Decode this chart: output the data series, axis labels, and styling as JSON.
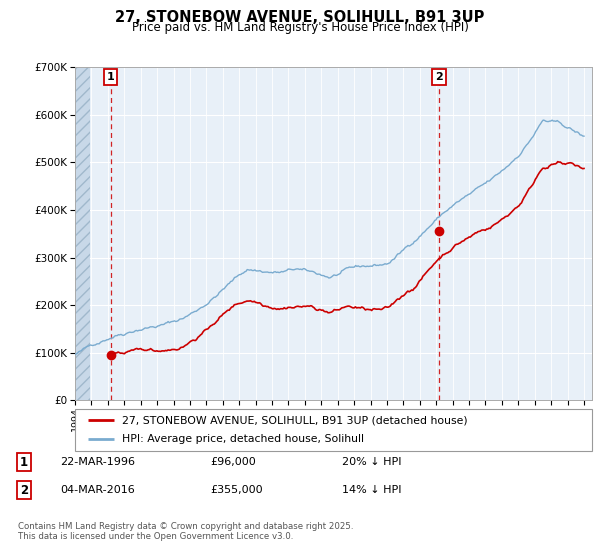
{
  "title": "27, STONEBOW AVENUE, SOLIHULL, B91 3UP",
  "subtitle": "Price paid vs. HM Land Registry's House Price Index (HPI)",
  "legend_property": "27, STONEBOW AVENUE, SOLIHULL, B91 3UP (detached house)",
  "legend_hpi": "HPI: Average price, detached house, Solihull",
  "annotation1_date": "22-MAR-1996",
  "annotation1_price": "£96,000",
  "annotation1_hpi": "20% ↓ HPI",
  "annotation2_date": "04-MAR-2016",
  "annotation2_price": "£355,000",
  "annotation2_hpi": "14% ↓ HPI",
  "footer": "Contains HM Land Registry data © Crown copyright and database right 2025.\nThis data is licensed under the Open Government Licence v3.0.",
  "year_start": 1994,
  "year_end": 2025,
  "ylim_max": 700000,
  "property_color": "#cc0000",
  "hpi_color": "#7aabcf",
  "sale1_year": 1996.17,
  "sale1_price": 96000,
  "sale2_year": 2016.17,
  "sale2_price": 355000,
  "bg_color": "#dce8f5",
  "plot_bg": "#e8f0f8",
  "dashed_line_color": "#cc0000",
  "grid_color": "#ffffff",
  "hatch_color": "#c8d8e8"
}
